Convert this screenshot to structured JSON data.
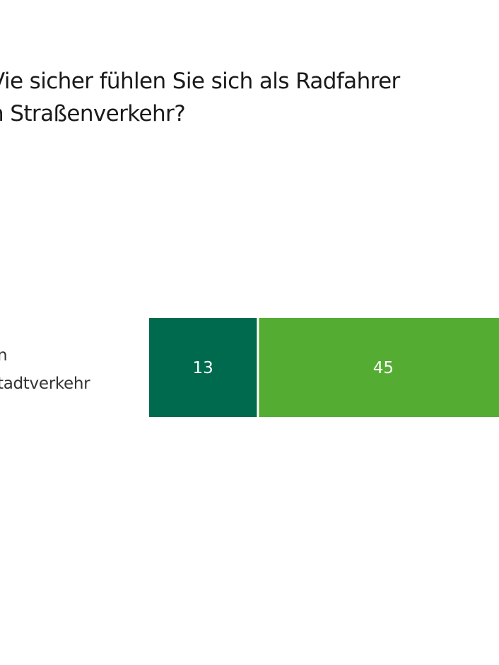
{
  "chart_data": {
    "type": "bar",
    "orientation": "horizontal",
    "stacked": true,
    "title": "Wie sicher fühlen Sie sich als Radfahrer\nim Straßenverkehr?",
    "title_visible": "Vie sicher fühlen Sie sich als Radfahrer\nn Straßenverkehr?",
    "categories": [
      "im Stadtverkehr"
    ],
    "category_label_visible": "n\ntadtverkehr",
    "series": [
      {
        "values": [
          13
        ],
        "color": "#006a4e"
      },
      {
        "values": [
          45
        ],
        "color": "#54ad32"
      }
    ],
    "data_labels": [
      "13",
      "45"
    ],
    "grid": false
  }
}
